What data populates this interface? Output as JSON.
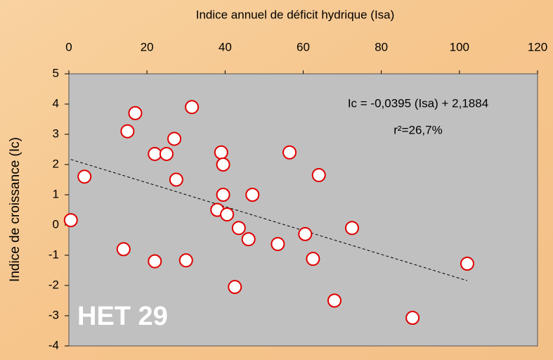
{
  "chart_data": {
    "type": "scatter",
    "xlabel": "Indice annuel de déficit hydrique (Isa)",
    "ylabel": "Indice de croissance (Ic)",
    "annotations": [
      "Ic  = -0,0395 (Isa) + 2,1884",
      "r²=26,7%",
      "HET 29"
    ],
    "trendline": {
      "slope": -0.0395,
      "intercept": 2.1884
    },
    "color": "#e00000",
    "x": [
      0.5,
      4,
      15,
      17,
      14,
      22,
      25,
      27,
      27.5,
      22,
      30,
      31.5,
      39,
      39.5,
      39.5,
      38,
      40.5,
      43.5,
      46,
      42.5,
      47,
      53.5,
      56.5,
      60.5,
      64,
      62.5,
      72.5,
      68,
      88,
      102
    ],
    "values": [
      0.16,
      1.6,
      3.1,
      3.7,
      -0.8,
      2.35,
      2.35,
      2.85,
      1.5,
      -1.2,
      -1.17,
      3.9,
      2.4,
      2.0,
      1.0,
      0.5,
      0.35,
      -0.1,
      -0.47,
      -2.05,
      1.0,
      -0.63,
      2.4,
      -0.3,
      1.65,
      -1.12,
      -0.1,
      -2.5,
      -3.07,
      -1.28
    ],
    "xlim": [
      0,
      120
    ],
    "xticks": [
      0,
      20,
      40,
      60,
      80,
      100,
      120
    ],
    "ylim": [
      -4,
      5
    ],
    "yticks": [
      5,
      4,
      3,
      2,
      1,
      0,
      -1,
      -2,
      -3,
      -4
    ]
  }
}
